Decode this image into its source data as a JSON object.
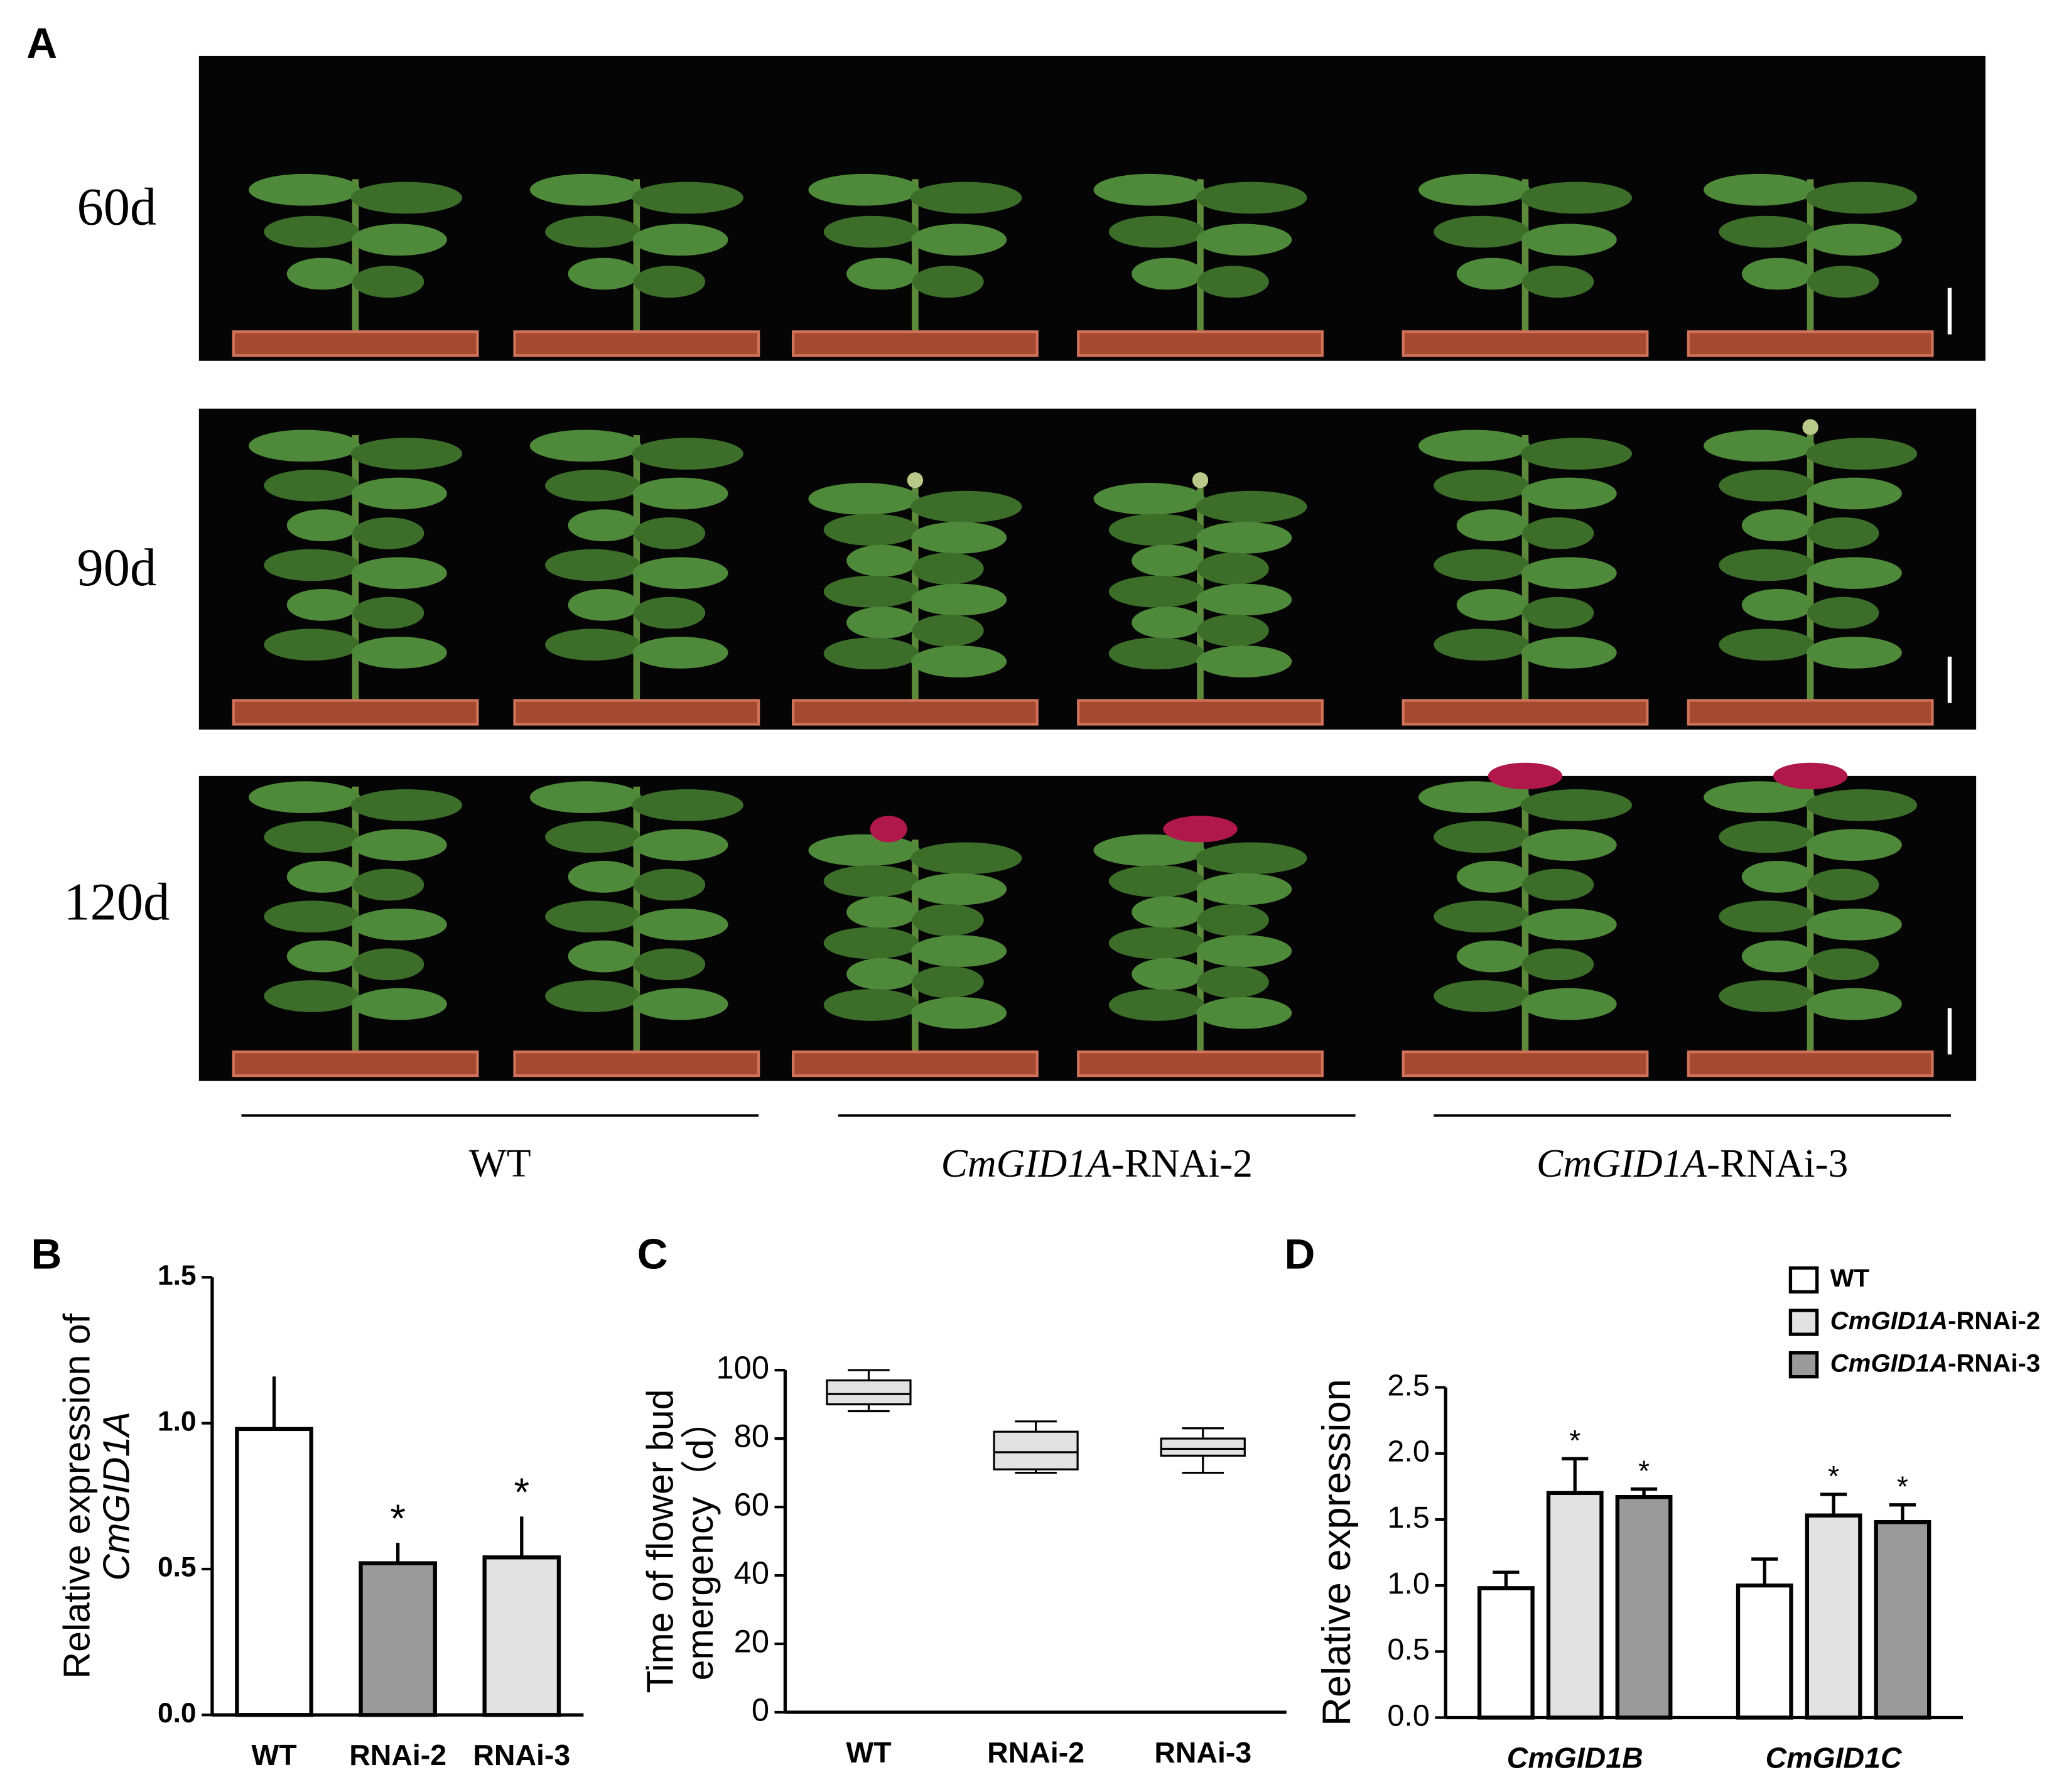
{
  "panel_a": {
    "label": "A",
    "rows": [
      "60d",
      "90d",
      "120d"
    ],
    "groups": [
      "WT",
      "CmGID1A-RNAi-2",
      "CmGID1A-RNAi-3"
    ]
  },
  "chart_data": [
    {
      "type": "bar",
      "panel": "B",
      "ylabel": [
        "Relative expression of",
        "CmGID1A"
      ],
      "categories": [
        "WT",
        "RNAi-2",
        "RNAi-3"
      ],
      "values": [
        0.98,
        0.52,
        0.54
      ],
      "errors": [
        0.18,
        0.07,
        0.14
      ],
      "colors": [
        "#ffffff",
        "#9a9a9a",
        "#e2e2e2"
      ],
      "significance": [
        null,
        "*",
        "*"
      ],
      "ylim": [
        0,
        1.5
      ],
      "yticks": [
        {
          "value": 0,
          "label": "0.0"
        },
        0.5,
        {
          "value": 1,
          "label": "1.0"
        },
        1.5
      ]
    },
    {
      "type": "box",
      "panel": "C",
      "ylabel": [
        "Time of flower bud",
        "emergency（d）"
      ],
      "categories": [
        "WT",
        "RNAi-2",
        "RNAi-3"
      ],
      "boxes": [
        {
          "min": 88,
          "q1": 90,
          "median": 93,
          "q3": 97,
          "max": 100
        },
        {
          "min": 70,
          "q1": 71,
          "median": 76,
          "q3": 82,
          "max": 85
        },
        {
          "min": 70,
          "q1": 75,
          "median": 77,
          "q3": 80,
          "max": 83
        }
      ],
      "color": "#e2e2e2",
      "ylim": [
        0,
        100
      ],
      "yticks": [
        0,
        20,
        40,
        60,
        80,
        100
      ]
    },
    {
      "type": "grouped-bar",
      "panel": "D",
      "ylabel": "Relative expression",
      "categories": [
        "CmGID1B",
        "CmGID1C"
      ],
      "legend": "upper right",
      "series": [
        {
          "name": "WT",
          "color": "#ffffff",
          "values": [
            0.98,
            1.0
          ],
          "errors": [
            0.12,
            0.2
          ],
          "significance": [
            null,
            null
          ]
        },
        {
          "name": "CmGID1A-RNAi-2",
          "color": "#e2e2e2",
          "values": [
            1.7,
            1.53
          ],
          "errors": [
            0.26,
            0.16
          ],
          "significance": [
            "*",
            "*"
          ]
        },
        {
          "name": "CmGID1A-RNAi-3",
          "color": "#9a9a9a",
          "values": [
            1.67,
            1.48
          ],
          "errors": [
            0.06,
            0.13
          ],
          "significance": [
            "*",
            "*"
          ]
        }
      ],
      "ylim": [
        0,
        2.5
      ],
      "yticks": [
        {
          "value": 0,
          "label": "0.0"
        },
        0.5,
        {
          "value": 1,
          "label": "1.0"
        },
        1.5,
        {
          "value": 2,
          "label": "2.0"
        },
        2.5
      ]
    }
  ]
}
